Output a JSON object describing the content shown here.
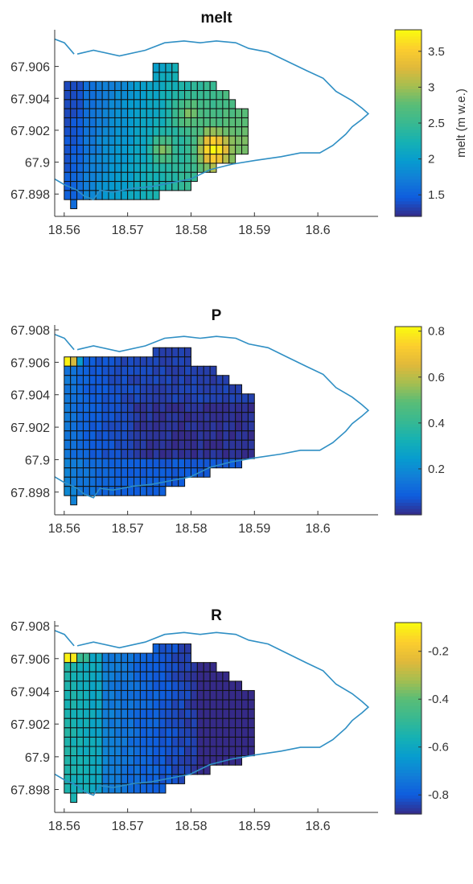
{
  "figure": {
    "panels": 3
  },
  "chart_data": [
    {
      "type": "heatmap",
      "title": "melt",
      "x_ticks": [
        "18.56",
        "18.57",
        "18.58",
        "18.59",
        "18.6"
      ],
      "y_ticks": [
        "67.898",
        "67.9",
        "67.902",
        "67.904",
        "67.906"
      ],
      "xlim": [
        18.5585,
        18.6095
      ],
      "ylim": [
        67.8966,
        67.9083
      ],
      "colorbar": {
        "label": "melt (m w.e.)",
        "range": [
          1.2,
          3.8
        ],
        "ticks": [
          "1.5",
          "2",
          "2.5",
          "3",
          "3.5"
        ],
        "tick_values": [
          1.5,
          2,
          2.5,
          3,
          3.5
        ]
      },
      "grid": {
        "x0": 18.56,
        "dx": 0.001,
        "ncols": 30,
        "y_top": 67.9062,
        "dy": 0.00057,
        "nrows": 16,
        "row_starts": [
          14,
          14,
          0,
          0,
          0,
          0,
          0,
          0,
          0,
          0,
          0,
          0,
          0,
          0,
          0,
          1
        ],
        "row_ends": [
          17,
          17,
          23,
          25,
          26,
          28,
          28,
          28,
          28,
          28,
          26,
          23,
          20,
          19,
          14,
          1
        ]
      },
      "field": "melt"
    },
    {
      "type": "heatmap",
      "title": "P",
      "x_ticks": [
        "18.56",
        "18.57",
        "18.58",
        "18.59",
        "18.6"
      ],
      "y_ticks": [
        "67.898",
        "67.9",
        "67.902",
        "67.904",
        "67.906",
        "67.908"
      ],
      "xlim": [
        18.5585,
        18.6095
      ],
      "ylim": [
        67.8966,
        67.9083
      ],
      "colorbar": {
        "label": "",
        "range": [
          0.0,
          0.82
        ],
        "ticks": [
          "0.2",
          "0.4",
          "0.6",
          "0.8"
        ],
        "tick_values": [
          0.2,
          0.4,
          0.6,
          0.8
        ]
      },
      "grid": {
        "x0": 18.56,
        "dx": 0.001,
        "ncols": 30,
        "y_top": 67.9069,
        "dy": 0.00057,
        "nrows": 17,
        "row_starts": [
          14,
          0,
          0,
          0,
          0,
          0,
          0,
          0,
          0,
          0,
          0,
          0,
          0,
          0,
          0,
          0,
          1
        ],
        "row_ends": [
          19,
          19,
          23,
          25,
          27,
          29,
          30,
          30,
          30,
          30,
          30,
          29,
          27,
          22,
          18,
          15,
          1
        ]
      },
      "field": "P"
    },
    {
      "type": "heatmap",
      "title": "R",
      "x_ticks": [
        "18.56",
        "18.57",
        "18.58",
        "18.59",
        "18.6"
      ],
      "y_ticks": [
        "67.898",
        "67.9",
        "67.902",
        "67.904",
        "67.906",
        "67.908"
      ],
      "xlim": [
        18.5585,
        18.6095
      ],
      "ylim": [
        67.8966,
        67.9083
      ],
      "colorbar": {
        "label": "",
        "range": [
          -0.88,
          -0.08
        ],
        "ticks": [
          "-0.2",
          "-0.4",
          "-0.6",
          "-0.8"
        ],
        "tick_values": [
          -0.2,
          -0.4,
          -0.6,
          -0.8
        ]
      },
      "grid": {
        "x0": 18.56,
        "dx": 0.001,
        "ncols": 30,
        "y_top": 67.9069,
        "dy": 0.00057,
        "nrows": 17,
        "row_starts": [
          14,
          0,
          0,
          0,
          0,
          0,
          0,
          0,
          0,
          0,
          0,
          0,
          0,
          0,
          0,
          0,
          1
        ],
        "row_ends": [
          19,
          19,
          23,
          25,
          27,
          29,
          30,
          30,
          30,
          30,
          30,
          29,
          27,
          22,
          18,
          15,
          1
        ]
      },
      "field": "R"
    }
  ],
  "colors": {
    "outline": "#2f8fc4",
    "cell_edge": "#111111",
    "axis": "#333333"
  }
}
